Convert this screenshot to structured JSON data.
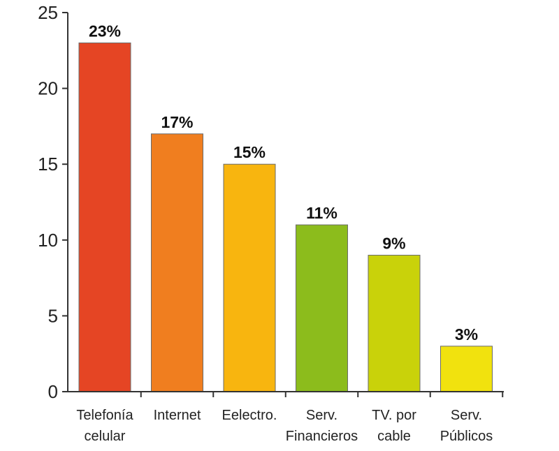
{
  "chart_data": {
    "type": "bar",
    "title": "",
    "xlabel": "",
    "ylabel": "",
    "ylim": [
      0,
      25
    ],
    "yticks": [
      0,
      5,
      10,
      15,
      20,
      25
    ],
    "grid": false,
    "categories": [
      [
        "Telefonía",
        "celular"
      ],
      [
        "Internet"
      ],
      [
        "Eelectro."
      ],
      [
        "Serv.",
        "Financieros"
      ],
      [
        "TV. por",
        "cable"
      ],
      [
        "Serv.",
        "Públicos"
      ]
    ],
    "values": [
      23,
      17,
      15,
      11,
      9,
      3
    ],
    "data_labels": [
      "23%",
      "17%",
      "15%",
      "11%",
      "9%",
      "3%"
    ],
    "colors": [
      "#e54524",
      "#f07e1f",
      "#f8b50f",
      "#8cbc1c",
      "#c9d20a",
      "#f1e20e"
    ]
  }
}
